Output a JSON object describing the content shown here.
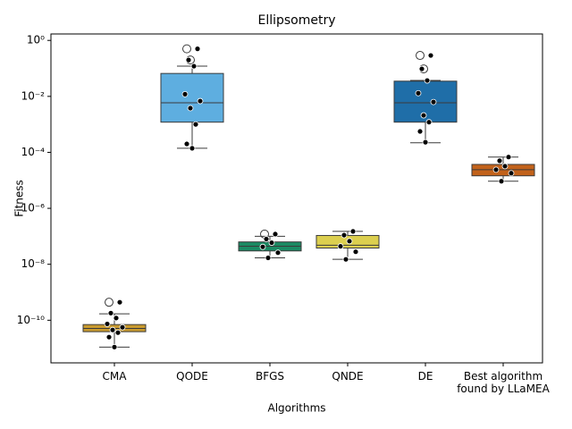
{
  "chart_data": {
    "type": "box",
    "title": "Ellipsometry",
    "x_label": "Algorithms",
    "y_label": "Fitness",
    "log_y": true,
    "categories": [
      "CMA",
      "QODE",
      "BFGS",
      "QNDE",
      "DE",
      "Best algorithm found by LLaMEA"
    ],
    "colors": [
      "#c99a2e",
      "#5eaee0",
      "#1b8a63",
      "#dccf4f",
      "#1f6ea8",
      "#c2621b"
    ],
    "boxes": [
      {
        "min": 1.1e-11,
        "q1": 3.9e-11,
        "median": 5.1e-11,
        "q3": 7e-11,
        "max": 1.7e-10,
        "outliers": [
          4.4e-10
        ],
        "points": [
          4.4e-10,
          1.8e-10,
          1.2e-10,
          7.4e-11,
          5.6e-11,
          4.5e-11,
          3.6e-11,
          2.5e-11,
          1.1e-11
        ]
      },
      {
        "min": 0.00014,
        "q1": 0.0012,
        "median": 0.0059,
        "q3": 0.066,
        "max": 0.12,
        "outliers": [
          0.5,
          0.2
        ],
        "points": [
          0.5,
          0.2,
          0.12,
          0.012,
          0.0068,
          0.0038,
          0.001,
          0.0002,
          0.00014
        ]
      },
      {
        "min": 1.7e-08,
        "q1": 3e-08,
        "median": 4.4e-08,
        "q3": 6.3e-08,
        "max": 1e-07,
        "outliers": [
          1.2e-07
        ],
        "points": [
          1.2e-07,
          8e-08,
          5.9e-08,
          4.2e-08,
          2.6e-08,
          1.7e-08
        ]
      },
      {
        "min": 1.5e-08,
        "q1": 3.8e-08,
        "median": 4.8e-08,
        "q3": 1.07e-07,
        "max": 1.5e-07,
        "outliers": [],
        "points": [
          1.5e-07,
          1.1e-07,
          6.7e-08,
          4.4e-08,
          2.8e-08,
          1.5e-08
        ]
      },
      {
        "min": 0.00022,
        "q1": 0.0012,
        "median": 0.0059,
        "q3": 0.035,
        "max": 0.037,
        "outliers": [
          0.29,
          0.096
        ],
        "points": [
          0.29,
          0.096,
          0.037,
          0.013,
          0.0063,
          0.0021,
          0.0012,
          0.00056,
          0.00023
        ]
      },
      {
        "min": 9.3e-06,
        "q1": 1.45e-05,
        "median": 2.4e-05,
        "q3": 3.7e-05,
        "max": 6.8e-05,
        "outliers": [],
        "points": [
          6.8e-05,
          5e-05,
          3.2e-05,
          2.4e-05,
          1.8e-05,
          9.3e-06
        ]
      }
    ],
    "ylim": [
      3e-12,
      1.7
    ],
    "yticks": [
      {
        "value": 1,
        "label": "10⁰"
      },
      {
        "value": 0.01,
        "label": "10⁻²"
      },
      {
        "value": 0.0001,
        "label": "10⁻⁴"
      },
      {
        "value": 1e-06,
        "label": "10⁻⁶"
      },
      {
        "value": 1e-08,
        "label": "10⁻⁸"
      },
      {
        "value": 1e-10,
        "label": "10⁻¹⁰"
      }
    ]
  }
}
